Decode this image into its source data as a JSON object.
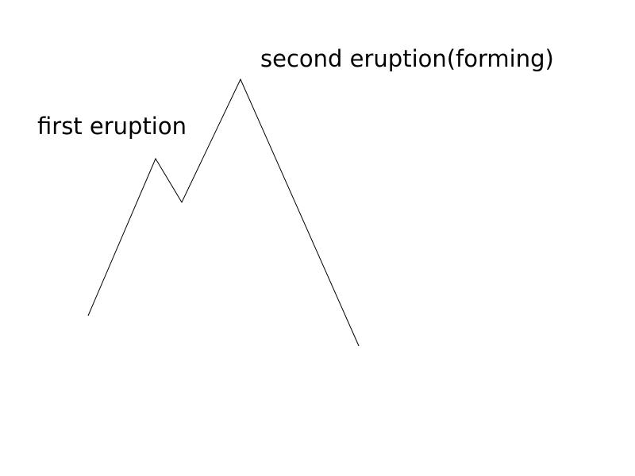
{
  "labels": {
    "first": "first eruption",
    "second": "second eruption(forming)"
  },
  "colors": {
    "background": "#ffffff",
    "stroke": "#000000",
    "text": "#000000"
  }
}
